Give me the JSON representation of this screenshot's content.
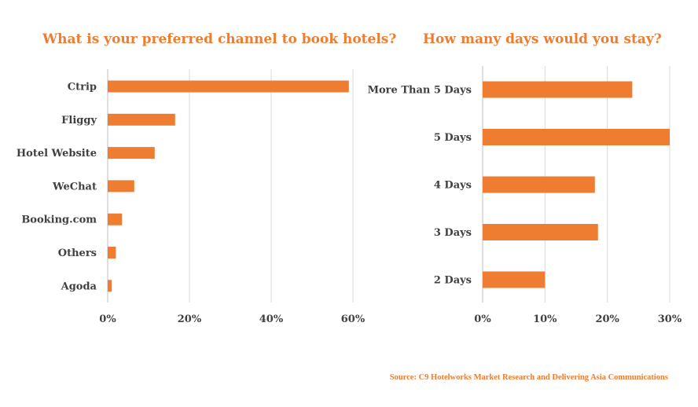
{
  "chart_data": [
    {
      "type": "bar",
      "orientation": "horizontal",
      "title": "What is your preferred channel to book hotels?",
      "categories": [
        "Ctrip",
        "Fliggy",
        "Hotel Website",
        "WeChat",
        "Booking.com",
        "Others",
        "Agoda"
      ],
      "values": [
        59,
        16.5,
        11.5,
        6.5,
        3.5,
        2,
        1
      ],
      "unit": "%",
      "xlim": [
        0,
        60
      ],
      "ticks": [
        "0%",
        "20%",
        "40%",
        "60%"
      ],
      "grid": true,
      "color": "#ee7d31"
    },
    {
      "type": "bar",
      "orientation": "horizontal",
      "title": "How many days would you stay?",
      "categories": [
        "More Than 5 Days",
        "5 Days",
        "4 Days",
        "3 Days",
        "2 Days"
      ],
      "values": [
        24,
        30,
        18,
        18.5,
        10
      ],
      "unit": "%",
      "xlim": [
        0,
        30
      ],
      "ticks": [
        "0%",
        "10%",
        "20%",
        "30%"
      ],
      "grid": true,
      "color": "#ee7d31"
    }
  ],
  "source": "Source: C9 Hotelworks Market Research and Delivering Asia Communications"
}
